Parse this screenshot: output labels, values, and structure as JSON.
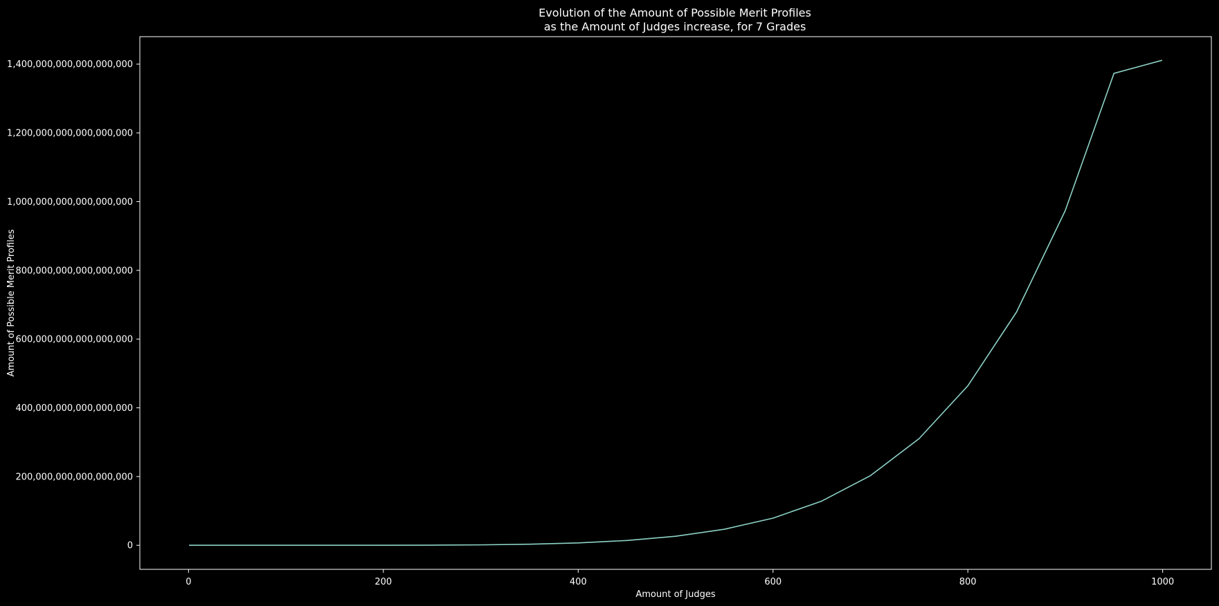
{
  "chart_data": {
    "type": "line",
    "title_line1": "Evolution of the Amount of Possible Merit Profiles",
    "title_line2": "as the Amount of Judges increase, for 7 Grades",
    "xlabel": "Amount of Judges",
    "ylabel": "Amount of Possible Merit Profiles",
    "xlim": [
      -50,
      1050
    ],
    "ylim": [
      -70000000000000000,
      1480000000000000000
    ],
    "x_ticks": [
      0,
      200,
      400,
      600,
      800,
      1000
    ],
    "x_tick_labels": [
      "0",
      "200",
      "400",
      "600",
      "800",
      "1000"
    ],
    "y_ticks": [
      0,
      200000000000000000,
      400000000000000000,
      600000000000000000,
      800000000000000000,
      1000000000000000000,
      1200000000000000000,
      1400000000000000000
    ],
    "y_tick_labels": [
      "0",
      "200,000,000,000,000,000",
      "400,000,000,000,000,000",
      "600,000,000,000,000,000",
      "800,000,000,000,000,000",
      "1,000,000,000,000,000,000",
      "1,200,000,000,000,000,000",
      "1,400,000,000,000,000,000"
    ],
    "grid": false,
    "series": [
      {
        "color": "#8dd3c7",
        "x": [
          1,
          50,
          100,
          150,
          200,
          250,
          300,
          350,
          400,
          450,
          500,
          550,
          600,
          650,
          700,
          750,
          800,
          850,
          900,
          950,
          999
        ],
        "y": [
          7,
          23381245875,
          1677106641551,
          19033476436451,
          106809909606251,
          408126961386151,
          1218859513950051,
          3083591521266151,
          6883744905801051,
          13960962986922851,
          26286850862202551,
          46669132920658251,
          79014237453050551,
          128646367390278951,
          202684099158900251,
          310473527654887851,
          464079977344682251,
          678837310491662651,
          973955863508962451,
          1373188009438724851,
          1410929475658700437
        ]
      }
    ]
  }
}
